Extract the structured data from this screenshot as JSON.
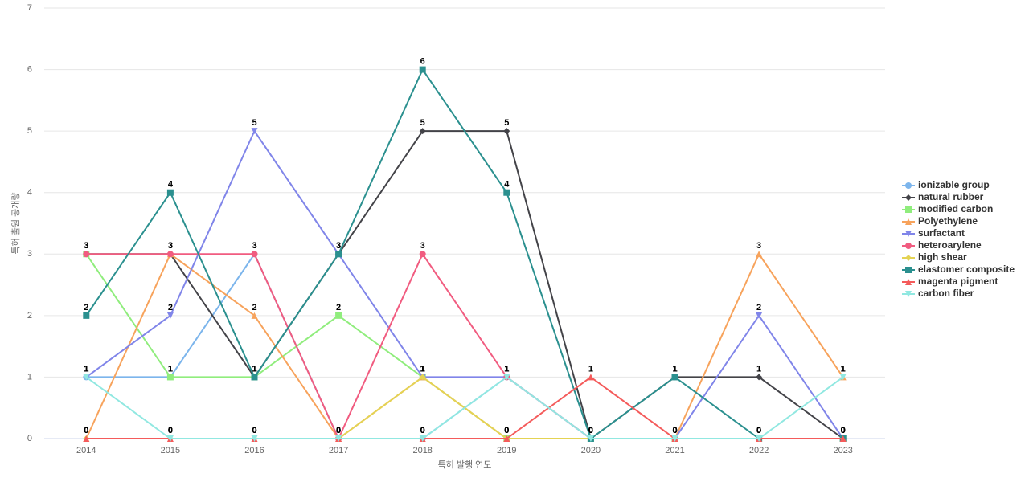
{
  "chart_data": {
    "type": "line",
    "x_label": "특허 발행 연도",
    "y_label": "특허 출원 공개량",
    "categories": [
      "2014",
      "2015",
      "2016",
      "2017",
      "2018",
      "2019",
      "2020",
      "2021",
      "2022",
      "2023"
    ],
    "ylim": [
      0,
      7
    ],
    "yticks": [
      0,
      1,
      2,
      3,
      4,
      5,
      6,
      7
    ],
    "grid": true,
    "legend": "right",
    "series": [
      {
        "name": "ionizable group",
        "color": "#7cb5ec",
        "symbol": "circle",
        "values": [
          1,
          1,
          3,
          0,
          0,
          1,
          0,
          0,
          0,
          0
        ]
      },
      {
        "name": "natural rubber",
        "color": "#434348",
        "symbol": "diamond",
        "values": [
          3,
          3,
          1,
          3,
          5,
          5,
          0,
          1,
          1,
          0
        ]
      },
      {
        "name": "modified carbon",
        "color": "#90ed7d",
        "symbol": "square",
        "values": [
          3,
          1,
          1,
          2,
          1,
          0,
          0,
          0,
          0,
          0
        ]
      },
      {
        "name": "Polyethylene",
        "color": "#f7a35c",
        "symbol": "triangle",
        "values": [
          0,
          3,
          2,
          0,
          1,
          0,
          0,
          0,
          3,
          1
        ]
      },
      {
        "name": "surfactant",
        "color": "#8085e9",
        "symbol": "triangle-down",
        "values": [
          1,
          2,
          5,
          3,
          1,
          1,
          0,
          0,
          2,
          0
        ]
      },
      {
        "name": "heteroarylene",
        "color": "#f15c80",
        "symbol": "circle",
        "values": [
          3,
          3,
          3,
          0,
          3,
          1,
          0,
          0,
          0,
          0
        ]
      },
      {
        "name": "high shear",
        "color": "#e4d354",
        "symbol": "diamond",
        "values": [
          0,
          0,
          0,
          0,
          1,
          0,
          0,
          0,
          0,
          0
        ]
      },
      {
        "name": "elastomer composite",
        "color": "#2b908f",
        "symbol": "square",
        "values": [
          2,
          4,
          1,
          3,
          6,
          4,
          0,
          1,
          0,
          0
        ]
      },
      {
        "name": "magenta pigment",
        "color": "#f45b5b",
        "symbol": "triangle",
        "values": [
          0,
          0,
          0,
          0,
          0,
          0,
          1,
          0,
          0,
          0
        ]
      },
      {
        "name": "carbon fiber",
        "color": "#91e8e1",
        "symbol": "triangle-down",
        "values": [
          1,
          0,
          0,
          0,
          0,
          1,
          0,
          0,
          0,
          1
        ]
      }
    ]
  }
}
